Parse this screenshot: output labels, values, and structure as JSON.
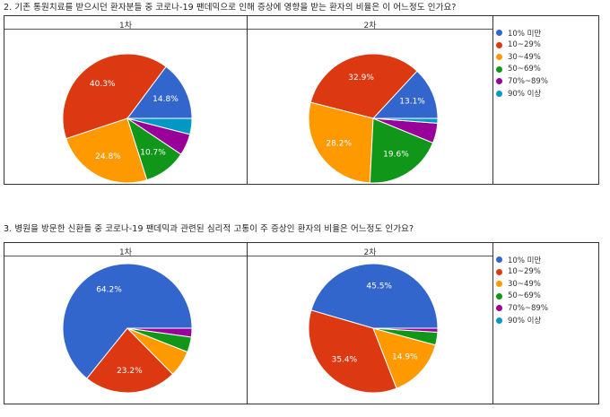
{
  "colors": {
    "10% 미만": "#3366cc",
    "10~29%": "#dc3912",
    "30~49%": "#ff9900",
    "50~69%": "#109618",
    "70%~89%": "#990099",
    "90% 이상": "#0099c6"
  },
  "sections": [
    {
      "question": "2. 기존 통원치료를 받으시던 환자분들 중 코로나-19 팬데믹으로 인해 증상에 영향을 받는 환자의 비율은 이 어느정도 인가요?",
      "legend": [
        "10% 미만",
        "10~29%",
        "30~49%",
        "50~69%",
        "70%~89%",
        "90% 이상"
      ],
      "panels": [
        {
          "title": "1차"
        },
        {
          "title": "2차"
        }
      ]
    },
    {
      "question": "3. 병원을 방문한 신환들 중 코로나-19 팬데믹과 관련된 심리적 고통이 주 증상인 환자의 비율은 어느정도 인가요?",
      "legend": [
        "10% 미만",
        "10~29%",
        "30~49%",
        "50~69%",
        "70%~89%",
        "90% 이상"
      ],
      "panels": [
        {
          "title": "1차"
        },
        {
          "title": "2차"
        }
      ]
    }
  ],
  "chart_data": [
    {
      "type": "pie",
      "title": "1차",
      "categories": [
        "10% 미만",
        "10~29%",
        "30~49%",
        "50~69%",
        "70%~89%",
        "90% 이상"
      ],
      "values": [
        14.8,
        40.3,
        24.8,
        10.7,
        5.4,
        4.0
      ],
      "labels": [
        "14.8%",
        "40.3%",
        "24.8%",
        "10.7%",
        "",
        ""
      ]
    },
    {
      "type": "pie",
      "title": "2차",
      "categories": [
        "10% 미만",
        "10~29%",
        "30~49%",
        "50~69%",
        "70%~89%",
        "90% 이상"
      ],
      "values": [
        13.1,
        32.9,
        28.2,
        19.6,
        5.0,
        1.2
      ],
      "labels": [
        "13.1%",
        "32.9%",
        "28.2%",
        "19.6%",
        "",
        ""
      ]
    },
    {
      "type": "pie",
      "title": "1차",
      "categories": [
        "10% 미만",
        "10~29%",
        "30~49%",
        "50~69%",
        "70%~89%",
        "90% 이상"
      ],
      "values": [
        64.2,
        23.2,
        6.6,
        3.8,
        2.2,
        0
      ],
      "labels": [
        "64.2%",
        "23.2%",
        "",
        "",
        "",
        ""
      ]
    },
    {
      "type": "pie",
      "title": "2차",
      "categories": [
        "10% 미만",
        "10~29%",
        "30~49%",
        "50~69%",
        "70%~89%",
        "90% 이상"
      ],
      "values": [
        45.5,
        35.4,
        14.9,
        3.2,
        1.0,
        0
      ],
      "labels": [
        "45.5%",
        "35.4%",
        "14.9%",
        "",
        "",
        ""
      ]
    }
  ]
}
